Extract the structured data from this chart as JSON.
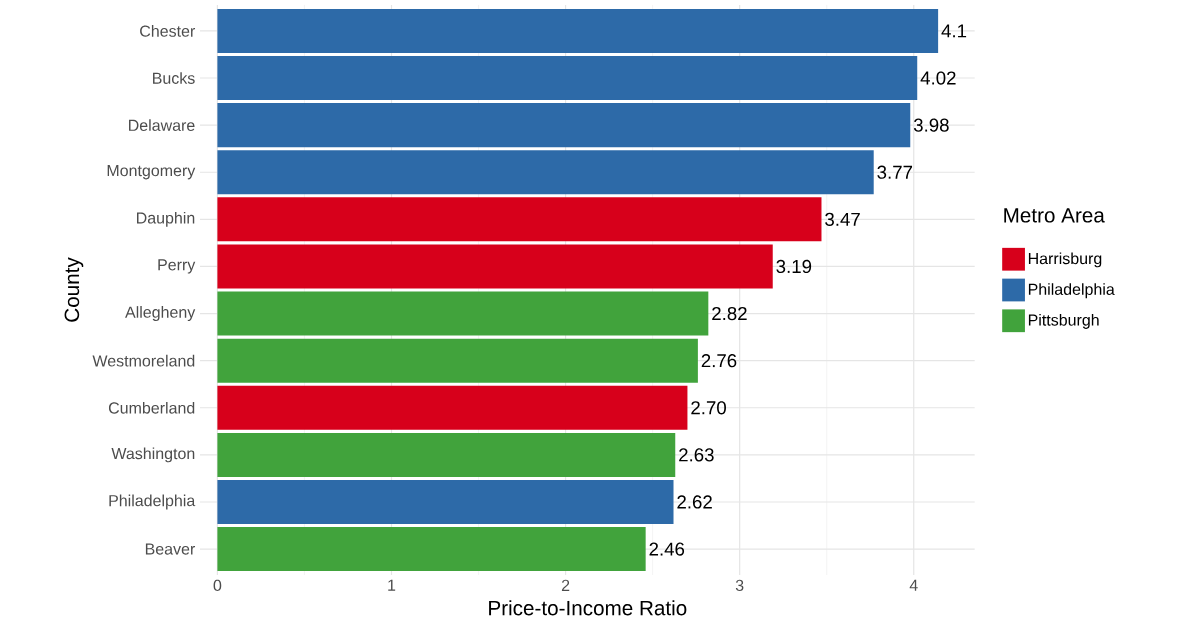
{
  "chart_data": {
    "type": "bar",
    "orientation": "horizontal",
    "xlabel": "Price-to-Income Ratio",
    "ylabel": "County",
    "legend_title": "Metro Area",
    "legend": "right",
    "grid": true,
    "categories": [
      "Chester",
      "Bucks",
      "Delaware",
      "Montgomery",
      "Dauphin",
      "Perry",
      "Allegheny",
      "Westmoreland",
      "Cumberland",
      "Washington",
      "Philadelphia",
      "Beaver"
    ],
    "series": [
      {
        "name": "Harrisburg",
        "color": "#d7001b",
        "values": [
          null,
          null,
          null,
          null,
          3.47,
          3.19,
          null,
          null,
          2.7,
          null,
          null,
          null
        ]
      },
      {
        "name": "Philadelphia",
        "color": "#2d6aa8",
        "values": [
          4.14,
          4.02,
          3.98,
          3.77,
          null,
          null,
          null,
          null,
          null,
          null,
          2.62,
          null
        ]
      },
      {
        "name": "Pittsburgh",
        "color": "#41a33c",
        "values": [
          null,
          null,
          null,
          null,
          null,
          null,
          2.82,
          2.76,
          null,
          2.63,
          null,
          2.46
        ]
      }
    ],
    "value_labels": [
      "4.1",
      "4.02",
      "3.98",
      "3.77",
      "3.47",
      "3.19",
      "2.82",
      "2.76",
      "2.70",
      "2.63",
      "2.62",
      "2.46"
    ],
    "xlim": [
      -0.1,
      4.35
    ],
    "xticks": [
      0,
      1,
      2,
      3,
      4
    ]
  }
}
